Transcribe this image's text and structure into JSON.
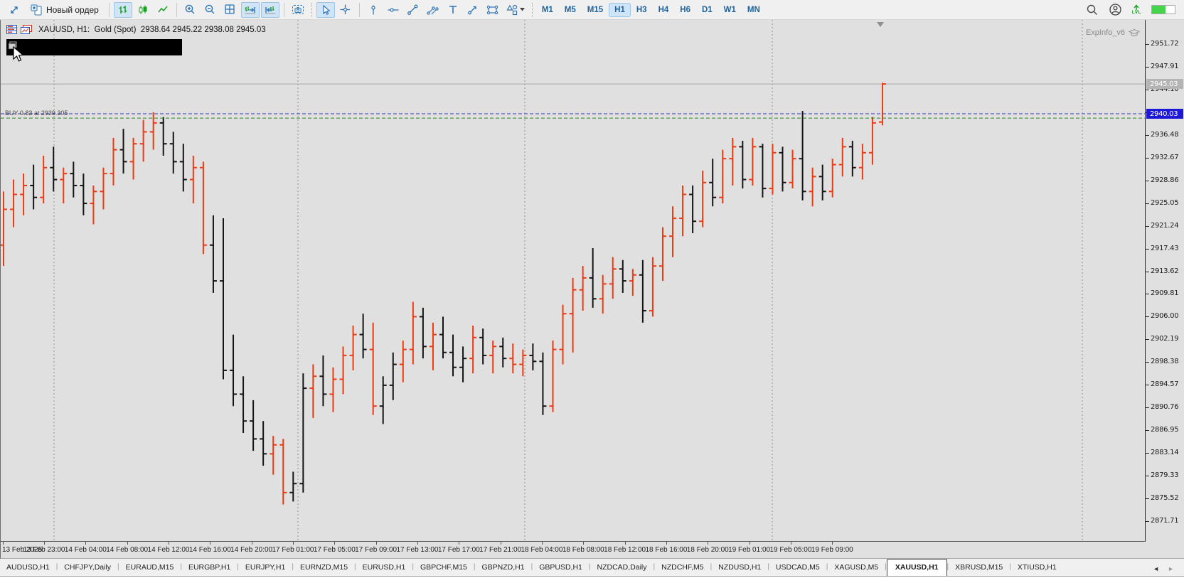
{
  "toolbar": {
    "new_order_label": "Новый ордер",
    "timeframes": [
      "M1",
      "M5",
      "M15",
      "H1",
      "H3",
      "H4",
      "H6",
      "D1",
      "W1",
      "MN"
    ],
    "active_timeframe": "H1",
    "level_label": "LVL",
    "battery_level": 0.6
  },
  "chart": {
    "header": "XAUUSD, H1:  Gold (Spot)  2938.64 2945.22 2938.08 2945.03",
    "expert_label": "ExpInfo_v6",
    "position_label": "BUY 0.83 at 2939.305",
    "bid_badge": "2940.03",
    "last_badge": "2945.03",
    "colors": {
      "up_bar": "#ee3911",
      "down_bar": "#141414",
      "bid_line": "#2b2bd4",
      "position_line": "#1a8c1a",
      "grid": "#8f8f8f",
      "last_line": "#a8a8a8",
      "background": "#e0e0e0",
      "bid_badge_bg": "#1d18d6",
      "last_badge_bg": "#b4b4b4"
    }
  },
  "chart_data": {
    "type": "ohlc-bars",
    "symbol": "XAUUSD",
    "timeframe": "H1",
    "title": "XAUUSD, H1: Gold (Spot)",
    "ohlc_display": {
      "open": "2938.64",
      "high": "2945.22",
      "low": "2938.08",
      "close": "2945.03"
    },
    "bid": 2940.03,
    "last": 2945.03,
    "position_price": 2939.305,
    "price_axis": {
      "top_price": 2951.72,
      "bottom_price": 2871.71,
      "tick_step": 3.81
    },
    "price_ticks": [
      "2951.72",
      "2947.91",
      "2944.10",
      "2940.29",
      "2936.48",
      "2932.67",
      "2928.86",
      "2925.05",
      "2921.24",
      "2917.43",
      "2913.62",
      "2909.81",
      "2906.00",
      "2902.19",
      "2898.38",
      "2894.57",
      "2890.76",
      "2886.95",
      "2883.14",
      "2879.33",
      "2875.52",
      "2871.71"
    ],
    "time_labels": [
      "13 Feb 2025",
      "13 Feb 23:00",
      "14 Feb 04:00",
      "14 Feb 08:00",
      "14 Feb 12:00",
      "14 Feb 16:00",
      "14 Feb 20:00",
      "17 Feb 01:00",
      "17 Feb 05:00",
      "17 Feb 09:00",
      "17 Feb 13:00",
      "17 Feb 17:00",
      "17 Feb 21:00",
      "18 Feb 04:00",
      "18 Feb 08:00",
      "18 Feb 12:00",
      "18 Feb 16:00",
      "18 Feb 20:00",
      "19 Feb 01:00",
      "19 Feb 05:00",
      "19 Feb 09:00"
    ],
    "day_separators_x": [
      75,
      418,
      737,
      1085,
      1521
    ],
    "bars": [
      [
        2918,
        2927,
        2914.5,
        2924,
        "u"
      ],
      [
        2924,
        2929,
        2921,
        2926.5,
        "u"
      ],
      [
        2926.5,
        2930,
        2923,
        2928,
        "u"
      ],
      [
        2928,
        2931.5,
        2924,
        2926,
        "d"
      ],
      [
        2926,
        2933,
        2925,
        2931,
        "u"
      ],
      [
        2931,
        2934.5,
        2927,
        2929,
        "d"
      ],
      [
        2929,
        2931,
        2925,
        2930,
        "u"
      ],
      [
        2930,
        2932,
        2926,
        2928,
        "d"
      ],
      [
        2928,
        2930,
        2923,
        2925,
        "d"
      ],
      [
        2925,
        2928,
        2921.5,
        2927,
        "u"
      ],
      [
        2927,
        2931,
        2924,
        2930,
        "u"
      ],
      [
        2930,
        2936,
        2928,
        2934,
        "u"
      ],
      [
        2934,
        2937.5,
        2930,
        2932,
        "d"
      ],
      [
        2932,
        2936,
        2929,
        2935,
        "u"
      ],
      [
        2935,
        2939,
        2932,
        2937,
        "u"
      ],
      [
        2937,
        2940.3,
        2934,
        2938.5,
        "u"
      ],
      [
        2938.5,
        2939.5,
        2933,
        2935,
        "d"
      ],
      [
        2935,
        2937,
        2930,
        2932,
        "d"
      ],
      [
        2932,
        2935,
        2927,
        2929,
        "d"
      ],
      [
        2929,
        2933,
        2925,
        2931,
        "u"
      ],
      [
        2931,
        2932,
        2916.5,
        2918,
        "u"
      ],
      [
        2918,
        2923,
        2910,
        2912,
        "d"
      ],
      [
        2912,
        2922.5,
        2895.5,
        2897,
        "d"
      ],
      [
        2897,
        2903,
        2891,
        2893,
        "d"
      ],
      [
        2893,
        2896,
        2886.5,
        2888.5,
        "d"
      ],
      [
        2888.5,
        2892,
        2883.5,
        2885.5,
        "d"
      ],
      [
        2885.5,
        2888.5,
        2881,
        2883,
        "d"
      ],
      [
        2883,
        2886,
        2879.5,
        2884.5,
        "u"
      ],
      [
        2884.5,
        2885.5,
        2874.5,
        2876.5,
        "u"
      ],
      [
        2876.5,
        2880,
        2875,
        2878,
        "d"
      ],
      [
        2878,
        2896.5,
        2876.5,
        2894,
        "d"
      ],
      [
        2894,
        2898,
        2889,
        2896,
        "u"
      ],
      [
        2896,
        2899.5,
        2891,
        2893,
        "d"
      ],
      [
        2893,
        2897.5,
        2890,
        2895.5,
        "u"
      ],
      [
        2895.5,
        2901,
        2893,
        2899.5,
        "u"
      ],
      [
        2899.5,
        2904.5,
        2897,
        2903,
        "u"
      ],
      [
        2903,
        2906.5,
        2899,
        2900.5,
        "d"
      ],
      [
        2900.5,
        2905,
        2889.5,
        2891,
        "u"
      ],
      [
        2891,
        2896,
        2888,
        2894.5,
        "d"
      ],
      [
        2894.5,
        2900,
        2892,
        2898,
        "d"
      ],
      [
        2898,
        2902,
        2895,
        2900.5,
        "u"
      ],
      [
        2900.5,
        2908.5,
        2898,
        2906,
        "u"
      ],
      [
        2906,
        2907.5,
        2899,
        2901,
        "d"
      ],
      [
        2901,
        2905,
        2897,
        2903,
        "u"
      ],
      [
        2903,
        2906,
        2899,
        2900,
        "d"
      ],
      [
        2900,
        2903,
        2896,
        2897.5,
        "d"
      ],
      [
        2897.5,
        2901,
        2895,
        2899,
        "d"
      ],
      [
        2899,
        2904.5,
        2896.5,
        2902.5,
        "u"
      ],
      [
        2902.5,
        2904,
        2898,
        2899.5,
        "d"
      ],
      [
        2899.5,
        2902,
        2896.5,
        2901,
        "u"
      ],
      [
        2901,
        2902.5,
        2897.5,
        2899,
        "d"
      ],
      [
        2899,
        2901.5,
        2896.5,
        2898,
        "u"
      ],
      [
        2898,
        2900.5,
        2896,
        2899.5,
        "u"
      ],
      [
        2899.5,
        2901.5,
        2897,
        2898.5,
        "d"
      ],
      [
        2898.5,
        2900,
        2889.5,
        2891,
        "d"
      ],
      [
        2891,
        2902,
        2890,
        2900.5,
        "u"
      ],
      [
        2900.5,
        2908,
        2898,
        2906.5,
        "u"
      ],
      [
        2906.5,
        2912.5,
        2900,
        2910.5,
        "u"
      ],
      [
        2910.5,
        2914.5,
        2907,
        2912.5,
        "u"
      ],
      [
        2912.5,
        2917.5,
        2907.5,
        2909,
        "d"
      ],
      [
        2909,
        2913,
        2906.5,
        2911.5,
        "u"
      ],
      [
        2911.5,
        2916,
        2909,
        2914,
        "u"
      ],
      [
        2914,
        2915.5,
        2910,
        2912,
        "d"
      ],
      [
        2912,
        2914,
        2909.5,
        2913,
        "u"
      ],
      [
        2913,
        2915.5,
        2905,
        2907,
        "d"
      ],
      [
        2907,
        2916,
        2906,
        2914.5,
        "u"
      ],
      [
        2914.5,
        2921,
        2912,
        2919.5,
        "u"
      ],
      [
        2919.5,
        2924.5,
        2916,
        2922.5,
        "u"
      ],
      [
        2922.5,
        2928,
        2919.5,
        2926.5,
        "u"
      ],
      [
        2926.5,
        2928,
        2920,
        2922,
        "d"
      ],
      [
        2922,
        2930.5,
        2921,
        2928.5,
        "u"
      ],
      [
        2928.5,
        2932.5,
        2924.5,
        2926,
        "d"
      ],
      [
        2926,
        2934,
        2925,
        2932.5,
        "u"
      ],
      [
        2932.5,
        2936,
        2928,
        2934.5,
        "u"
      ],
      [
        2934.5,
        2935.5,
        2927.5,
        2929,
        "d"
      ],
      [
        2929,
        2936,
        2928,
        2934.5,
        "u"
      ],
      [
        2934.5,
        2935,
        2926,
        2927.5,
        "d"
      ],
      [
        2927.5,
        2935,
        2926.5,
        2933.5,
        "u"
      ],
      [
        2933.5,
        2934.5,
        2927,
        2928.5,
        "d"
      ],
      [
        2928.5,
        2934,
        2927.5,
        2932.5,
        "u"
      ],
      [
        2932.5,
        2940.5,
        2925.5,
        2927,
        "d"
      ],
      [
        2927,
        2931,
        2924.5,
        2929.5,
        "u"
      ],
      [
        2929.5,
        2931.5,
        2925.5,
        2927,
        "d"
      ],
      [
        2927,
        2932.5,
        2926,
        2931.5,
        "u"
      ],
      [
        2931.5,
        2936,
        2929.5,
        2934.5,
        "u"
      ],
      [
        2934.5,
        2935.5,
        2929.5,
        2931,
        "d"
      ],
      [
        2931,
        2935,
        2929,
        2933.5,
        "u"
      ],
      [
        2933.5,
        2939.5,
        2931.5,
        2938.5,
        "u"
      ],
      [
        2938.64,
        2945.22,
        2938.08,
        2945.03,
        "u"
      ]
    ]
  },
  "tabs": {
    "items": [
      "AUDUSD,H1",
      "CHFJPY,Daily",
      "EURAUD,M15",
      "EURGBP,H1",
      "EURJPY,H1",
      "EURNZD,M15",
      "EURUSD,H1",
      "GBPCHF,M15",
      "GBPNZD,H1",
      "GBPUSD,H1",
      "NZDCAD,Daily",
      "NZDCHF,M5",
      "NZDUSD,H1",
      "USDCAD,M5",
      "XAGUSD,M5",
      "XAUUSD,H1",
      "XBRUSD,M15",
      "XTIUSD,H1"
    ],
    "active": "XAUUSD,H1",
    "scroll_left_icon": "◄",
    "scroll_right_icon": "►"
  }
}
